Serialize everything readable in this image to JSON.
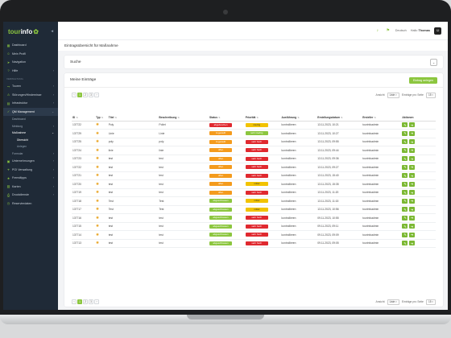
{
  "app": {
    "logo_part1": "tour",
    "logo_part2": "info",
    "logo_glyph": "✿",
    "collapse_icon": "chevron-left-icon"
  },
  "sidebar": {
    "items": [
      {
        "label": "Dashboard",
        "icon": "dashboard-icon"
      },
      {
        "label": "Mein Profil",
        "icon": "user-icon"
      },
      {
        "label": "Navigation",
        "icon": "navigation-icon"
      },
      {
        "label": "Hilfe",
        "icon": "help-icon"
      }
    ],
    "section1": "VERWALTUNG",
    "items2": [
      {
        "label": "Touren",
        "icon": "route-icon"
      },
      {
        "label": "Störungen/Hindernisse",
        "icon": "warning-icon"
      },
      {
        "label": "Infrastruktur",
        "icon": "infrastructure-icon"
      },
      {
        "label": "QM Management",
        "icon": "qm-icon"
      }
    ],
    "qm_sub": [
      {
        "label": "Dashboard"
      },
      {
        "label": "Meldung"
      },
      {
        "label": "Maßnahme"
      }
    ],
    "massnahme_sub": [
      {
        "label": "Übersicht"
      },
      {
        "label": "Anlegen"
      }
    ],
    "qm_sub_after": "Formular",
    "items3": [
      {
        "label": "Unternehmungen",
        "icon": "company-icon"
      },
      {
        "label": "POI Verwaltung",
        "icon": "poi-icon"
      },
      {
        "label": "Fremdtipps",
        "icon": "tips-icon"
      },
      {
        "label": "Karten",
        "icon": "map-icon"
      },
      {
        "label": "Druckdienste",
        "icon": "print-icon"
      },
      {
        "label": "Reservierdaten",
        "icon": "reservation-icon"
      }
    ]
  },
  "topbar": {
    "icons": [
      "bell-icon",
      "flag-icon"
    ],
    "user_prefix": "Hallo",
    "user_name": "Thomas",
    "language": "Deutsch"
  },
  "page": {
    "title": "Eintragsübersicht für Maßnahme"
  },
  "search": {
    "label": "Suche",
    "toggle_glyph": "⌄"
  },
  "list": {
    "title": "Meine Einträge",
    "new_button": "Eintrag anlegen",
    "pages": [
      "‹",
      "1",
      "2",
      "3",
      "›"
    ],
    "active_page": "1",
    "view_label": "Ansicht",
    "view_value": "Liste",
    "per_page_label": "Einträge pro Seite",
    "per_page_value": "15"
  },
  "table": {
    "columns": [
      "ID",
      "Typ",
      "Titel",
      "Beschreibung",
      "Status",
      "Priorität",
      "Ausführung",
      "Erstellungsdatum",
      "Ersteller",
      "Aktionen"
    ],
    "rows": [
      {
        "id": "137722",
        "title": "Poly",
        "desc": "Poliet",
        "status": "abgebrochen",
        "status_color": "red",
        "prio": "niedrig",
        "prio_color": "yellow",
        "exec": "kontrollieren",
        "date": "13.11.2023, 10:21",
        "creator": "tourinfoadmin"
      },
      {
        "id": "137729",
        "title": "Linie",
        "desc": "Linie",
        "status": "zugestellt",
        "status_color": "orange",
        "prio": "sehr niedrig",
        "prio_color": "green",
        "exec": "kontrollieren",
        "date": "13.11.2023, 10:27",
        "creator": "tourinfoadmin"
      },
      {
        "id": "137725",
        "title": "poly",
        "desc": "poly",
        "status": "zugestellt",
        "status_color": "orange",
        "prio": "sehr hoch",
        "prio_color": "red",
        "exec": "kontrollieren",
        "date": "13.11.2023, 09:55",
        "creator": "tourinfoadmin"
      },
      {
        "id": "137724",
        "title": "linie",
        "desc": "linie",
        "status": "offen",
        "status_color": "orange",
        "prio": "sehr hoch",
        "prio_color": "red",
        "exec": "kontrollieren",
        "date": "13.11.2023, 09:44",
        "creator": "tourinfoadmin"
      },
      {
        "id": "137723",
        "title": "test",
        "desc": "test",
        "status": "offen",
        "status_color": "orange",
        "prio": "sehr hoch",
        "prio_color": "red",
        "exec": "kontrollieren",
        "date": "13.11.2023, 09:36",
        "creator": "tourinfoadmin"
      },
      {
        "id": "137722",
        "title": "test",
        "desc": "test",
        "status": "offen",
        "status_color": "orange",
        "prio": "sehr hoch",
        "prio_color": "red",
        "exec": "kontrollieren",
        "date": "13.11.2023, 09:27",
        "creator": "tourinfoadmin"
      },
      {
        "id": "137721",
        "title": "test",
        "desc": "test",
        "status": "offen",
        "status_color": "orange",
        "prio": "sehr hoch",
        "prio_color": "red",
        "exec": "kontrollieren",
        "date": "13.11.2023, 15:40",
        "creator": "tourinfoadmin"
      },
      {
        "id": "137720",
        "title": "test",
        "desc": "test",
        "status": "offen",
        "status_color": "orange",
        "prio": "mittel",
        "prio_color": "yellow",
        "exec": "kontrollieren",
        "date": "13.11.2023, 15:35",
        "creator": "tourinfoadmin"
      },
      {
        "id": "137719",
        "title": "test",
        "desc": "test",
        "status": "offen",
        "status_color": "orange",
        "prio": "sehr hoch",
        "prio_color": "red",
        "exec": "kontrollieren",
        "date": "13.11.2023, 11:20",
        "creator": "tourinfoadmin"
      },
      {
        "id": "137718",
        "title": "Test",
        "desc": "Test",
        "status": "abgeschlossen",
        "status_color": "green",
        "prio": "mittel",
        "prio_color": "yellow",
        "exec": "kontrollieren",
        "date": "13.11.2023, 11:15",
        "creator": "tourinfoadmin"
      },
      {
        "id": "137717",
        "title": "Test",
        "desc": "Test",
        "status": "abgeschlossen",
        "status_color": "green",
        "prio": "mittel",
        "prio_color": "yellow",
        "exec": "kontrollieren",
        "date": "13.11.2023, 10:56",
        "creator": "tourinfoadmin"
      },
      {
        "id": "137716",
        "title": "test",
        "desc": "test",
        "status": "abgeschlossen",
        "status_color": "green",
        "prio": "sehr hoch",
        "prio_color": "red",
        "exec": "kontrollieren",
        "date": "09.11.2023, 10:55",
        "creator": "tourinfoadmin"
      },
      {
        "id": "137715",
        "title": "test",
        "desc": "test",
        "status": "abgeschlossen",
        "status_color": "green",
        "prio": "sehr hoch",
        "prio_color": "red",
        "exec": "kontrollieren",
        "date": "09.11.2023, 09:11",
        "creator": "tourinfoadmin"
      },
      {
        "id": "137714",
        "title": "test",
        "desc": "test",
        "status": "abgeschlossen",
        "status_color": "green",
        "prio": "sehr hoch",
        "prio_color": "red",
        "exec": "kontrollieren",
        "date": "09.11.2023, 09:09",
        "creator": "tourinfoadmin"
      },
      {
        "id": "137713",
        "title": "test",
        "desc": "test",
        "status": "abgeschlossen",
        "status_color": "green",
        "prio": "sehr hoch",
        "prio_color": "red",
        "exec": "kontrollieren",
        "date": "09.11.2023, 09:05",
        "creator": "tourinfoadmin"
      }
    ],
    "type_icon": "megaphone-icon",
    "action_edit": "✎",
    "action_open": "➔"
  },
  "colors": {
    "accent": "#8cc63f",
    "sidebar_bg": "#1f2a37",
    "red": "#e0292f",
    "orange": "#f49b1d",
    "yellow": "#f2c300"
  }
}
